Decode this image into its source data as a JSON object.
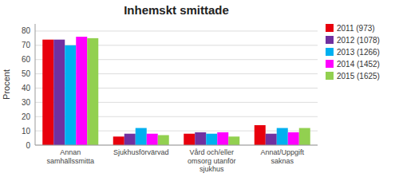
{
  "chart_data": {
    "type": "bar",
    "title": "Inhemskt smittade",
    "ylabel": "Procent",
    "categories": [
      "Annan\nsamhällssmitta",
      "Sjukhusförvärvad",
      "Vård och/eller\nomsorg utanför\nsjukhus",
      "Annat/Uppgift\nsaknas"
    ],
    "series": [
      {
        "name": "2011 (973)",
        "color": "#e8000d",
        "values": [
          74,
          6,
          8,
          14
        ]
      },
      {
        "name": "2012 (1078)",
        "color": "#7030a0",
        "values": [
          74,
          8,
          9,
          8
        ]
      },
      {
        "name": "2013 (1266)",
        "color": "#00b0f0",
        "values": [
          70,
          12,
          8,
          12
        ]
      },
      {
        "name": "2014 (1452)",
        "color": "#ff00ff",
        "values": [
          76,
          8,
          9,
          9
        ]
      },
      {
        "name": "2015 (1625)",
        "color": "#92d050",
        "values": [
          75,
          7,
          6,
          12
        ]
      }
    ],
    "ylim": [
      0,
      85
    ],
    "yticks": [
      0,
      10,
      20,
      30,
      40,
      50,
      60,
      70,
      80
    ],
    "grid": true,
    "legend": "upper right"
  }
}
